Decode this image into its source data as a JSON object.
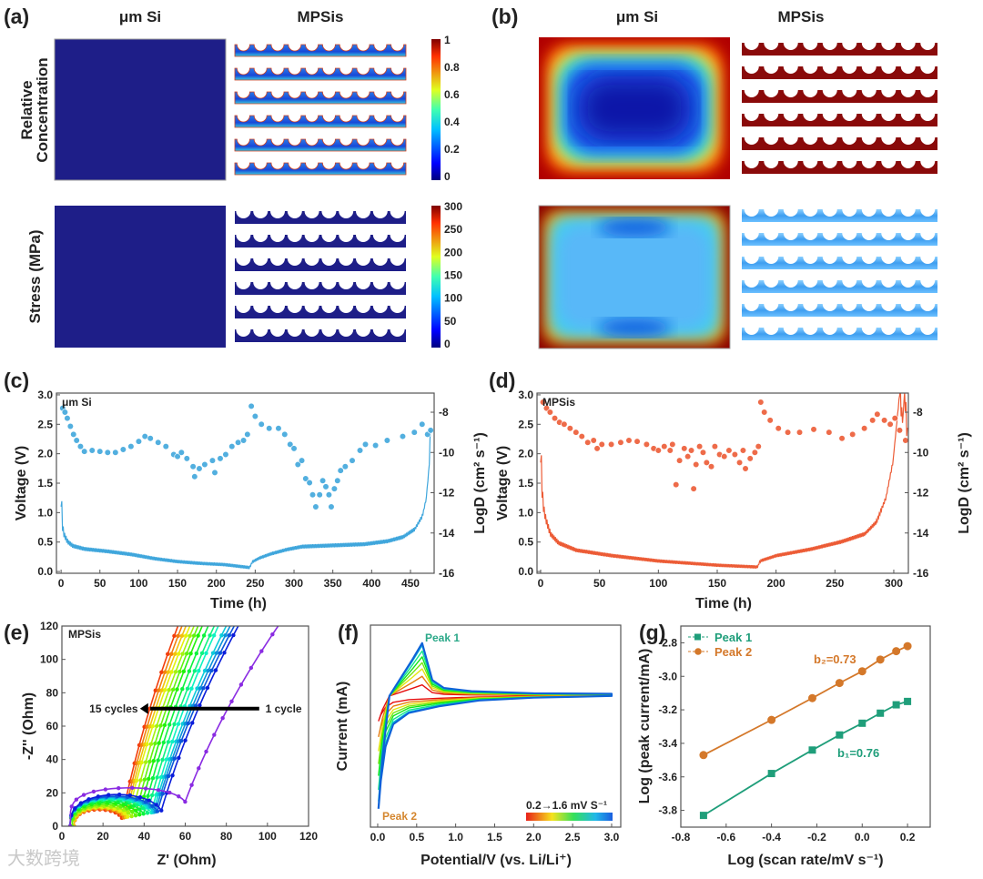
{
  "panels": {
    "a": "(a)",
    "b": "(b)",
    "c": "(c)",
    "d": "(d)",
    "e": "(e)",
    "f": "(f)",
    "g": "(g)"
  },
  "simulation": {
    "col_um": "μm Si",
    "col_mp": "MPSis",
    "row_conc_line1": "Relative",
    "row_conc_line2": "Concentration",
    "row_stress": "Stress (MPa)",
    "cbar_conc_ticks": [
      "1",
      "0.8",
      "0.6",
      "0.4",
      "0.2",
      "0"
    ],
    "cbar_stress_ticks": [
      "300",
      "250",
      "200",
      "150",
      "100",
      "50",
      "0"
    ],
    "colors": {
      "navy": "#1e1e88",
      "dark_red": "#8a0a0a",
      "light_blue": "#4aa8f0"
    }
  },
  "watermark": "大数跨境",
  "chart_data": [
    {
      "id": "c",
      "type": "scatter+line",
      "label": "μm Si",
      "xlabel": "Time (h)",
      "ylabel": "Voltage (V)",
      "y2label": "LogD (cm² s⁻¹)",
      "xlim": [
        -6,
        480.5
      ],
      "ylim": [
        -0.03,
        3.03
      ],
      "y2lim": [
        -16,
        -7.05
      ],
      "xticks": [
        0,
        50,
        100,
        150,
        200,
        250,
        300,
        350,
        400,
        450
      ],
      "yticks": [
        "0.0",
        "0.5",
        "1.0",
        "1.5",
        "2.0",
        "2.5",
        "3.0"
      ],
      "y2ticks": [
        -16,
        -14,
        -12,
        -10,
        -8
      ],
      "color": "#3fa6dc",
      "voltage": [
        [
          0,
          1.1
        ],
        [
          1,
          0.75
        ],
        [
          3,
          0.6
        ],
        [
          8,
          0.47
        ],
        [
          15,
          0.4
        ],
        [
          30,
          0.35
        ],
        [
          60,
          0.31
        ],
        [
          90,
          0.26
        ],
        [
          120,
          0.19
        ],
        [
          150,
          0.14
        ],
        [
          180,
          0.11
        ],
        [
          210,
          0.09
        ],
        [
          243,
          0.04
        ],
        [
          245,
          0.13
        ],
        [
          255,
          0.2
        ],
        [
          270,
          0.27
        ],
        [
          290,
          0.34
        ],
        [
          310,
          0.39
        ],
        [
          350,
          0.41
        ],
        [
          390,
          0.43
        ],
        [
          420,
          0.48
        ],
        [
          440,
          0.55
        ],
        [
          455,
          0.68
        ],
        [
          465,
          0.9
        ],
        [
          470,
          1.2
        ],
        [
          474,
          1.8
        ],
        [
          477,
          3.0
        ]
      ],
      "logD": [
        [
          2,
          -7.8
        ],
        [
          5,
          -8.0
        ],
        [
          8,
          -8.3
        ],
        [
          12,
          -8.7
        ],
        [
          16,
          -9.1
        ],
        [
          20,
          -9.4
        ],
        [
          25,
          -9.7
        ],
        [
          30,
          -9.95
        ],
        [
          40,
          -9.9
        ],
        [
          50,
          -9.95
        ],
        [
          60,
          -10.0
        ],
        [
          70,
          -10.0
        ],
        [
          80,
          -9.85
        ],
        [
          90,
          -9.7
        ],
        [
          100,
          -9.45
        ],
        [
          108,
          -9.2
        ],
        [
          115,
          -9.3
        ],
        [
          125,
          -9.5
        ],
        [
          135,
          -9.7
        ],
        [
          145,
          -10.1
        ],
        [
          150,
          -10.2
        ],
        [
          155,
          -10.0
        ],
        [
          162,
          -10.3
        ],
        [
          170,
          -10.7
        ],
        [
          172,
          -11.2
        ],
        [
          178,
          -10.8
        ],
        [
          185,
          -10.6
        ],
        [
          195,
          -10.4
        ],
        [
          198,
          -11.0
        ],
        [
          205,
          -10.3
        ],
        [
          212,
          -10.1
        ],
        [
          220,
          -9.7
        ],
        [
          228,
          -9.5
        ],
        [
          235,
          -9.4
        ],
        [
          240,
          -9.1
        ],
        [
          245,
          -7.7
        ],
        [
          250,
          -8.2
        ],
        [
          258,
          -8.6
        ],
        [
          268,
          -8.8
        ],
        [
          280,
          -8.8
        ],
        [
          288,
          -9.1
        ],
        [
          295,
          -9.6
        ],
        [
          300,
          -9.8
        ],
        [
          305,
          -10.6
        ],
        [
          310,
          -10.4
        ],
        [
          315,
          -11.3
        ],
        [
          320,
          -11.5
        ],
        [
          324,
          -12.1
        ],
        [
          328,
          -12.7
        ],
        [
          333,
          -12.1
        ],
        [
          337,
          -11.4
        ],
        [
          341,
          -11.7
        ],
        [
          345,
          -12.1
        ],
        [
          348,
          -12.7
        ],
        [
          352,
          -11.8
        ],
        [
          356,
          -11.4
        ],
        [
          360,
          -10.9
        ],
        [
          366,
          -10.7
        ],
        [
          375,
          -10.4
        ],
        [
          385,
          -9.9
        ],
        [
          392,
          -9.6
        ],
        [
          405,
          -9.65
        ],
        [
          420,
          -9.4
        ],
        [
          440,
          -9.2
        ],
        [
          455,
          -9.0
        ],
        [
          465,
          -8.6
        ],
        [
          472,
          -9.1
        ],
        [
          476,
          -8.9
        ]
      ]
    },
    {
      "id": "d",
      "type": "scatter+line",
      "label": "MPSis",
      "xlabel": "Time (h)",
      "ylabel": "Voltage (V)",
      "y2label": "LogD (cm² s⁻¹)",
      "xlim": [
        -3.1,
        312.4
      ],
      "ylim": [
        -0.03,
        3.03
      ],
      "y2lim": [
        -16,
        -7.05
      ],
      "xticks": [
        0,
        50,
        100,
        150,
        200,
        250,
        300
      ],
      "yticks": [
        "0.0",
        "0.5",
        "1.0",
        "1.5",
        "2.0",
        "2.5",
        "3.0"
      ],
      "y2ticks": [
        -16,
        -14,
        -12,
        -10,
        -8
      ],
      "color": "#ec5b35",
      "voltage": [
        [
          0,
          1.85
        ],
        [
          1.5,
          1.1
        ],
        [
          4,
          0.85
        ],
        [
          8,
          0.6
        ],
        [
          15,
          0.45
        ],
        [
          30,
          0.33
        ],
        [
          60,
          0.24
        ],
        [
          100,
          0.15
        ],
        [
          150,
          0.08
        ],
        [
          184,
          0.05
        ],
        [
          186,
          0.15
        ],
        [
          200,
          0.24
        ],
        [
          230,
          0.35
        ],
        [
          255,
          0.47
        ],
        [
          275,
          0.6
        ],
        [
          285,
          0.8
        ],
        [
          293,
          1.2
        ],
        [
          299,
          1.8
        ],
        [
          303,
          2.6
        ],
        [
          305,
          3.0
        ],
        [
          307,
          2.4
        ],
        [
          309,
          3.0
        ],
        [
          311,
          2.3
        ]
      ],
      "logD": [
        [
          2,
          -7.5
        ],
        [
          5,
          -7.8
        ],
        [
          8,
          -8.0
        ],
        [
          12,
          -8.3
        ],
        [
          16,
          -8.5
        ],
        [
          20,
          -8.6
        ],
        [
          25,
          -8.8
        ],
        [
          30,
          -9.0
        ],
        [
          35,
          -9.2
        ],
        [
          40,
          -9.5
        ],
        [
          45,
          -9.4
        ],
        [
          48,
          -9.8
        ],
        [
          52,
          -9.6
        ],
        [
          60,
          -9.6
        ],
        [
          68,
          -9.5
        ],
        [
          75,
          -9.4
        ],
        [
          82,
          -9.45
        ],
        [
          90,
          -9.6
        ],
        [
          96,
          -9.8
        ],
        [
          100,
          -9.9
        ],
        [
          105,
          -9.7
        ],
        [
          110,
          -9.9
        ],
        [
          112,
          -9.6
        ],
        [
          115,
          -11.6
        ],
        [
          118,
          -10.4
        ],
        [
          122,
          -9.8
        ],
        [
          125,
          -10.2
        ],
        [
          128,
          -9.9
        ],
        [
          130,
          -11.8
        ],
        [
          132,
          -10.6
        ],
        [
          135,
          -9.7
        ],
        [
          138,
          -10.0
        ],
        [
          141,
          -10.5
        ],
        [
          145,
          -10.7
        ],
        [
          148,
          -9.7
        ],
        [
          152,
          -10.1
        ],
        [
          156,
          -10.2
        ],
        [
          160,
          -9.9
        ],
        [
          165,
          -10.1
        ],
        [
          169,
          -10.5
        ],
        [
          172,
          -9.9
        ],
        [
          174,
          -10.8
        ],
        [
          178,
          -10.3
        ],
        [
          182,
          -10.0
        ],
        [
          185,
          -9.7
        ],
        [
          187,
          -7.5
        ],
        [
          190,
          -8.0
        ],
        [
          195,
          -8.4
        ],
        [
          202,
          -8.8
        ],
        [
          210,
          -9.0
        ],
        [
          220,
          -9.0
        ],
        [
          232,
          -8.85
        ],
        [
          245,
          -9.0
        ],
        [
          256,
          -9.3
        ],
        [
          265,
          -9.1
        ],
        [
          275,
          -8.8
        ],
        [
          282,
          -8.4
        ],
        [
          286,
          -8.1
        ],
        [
          292,
          -8.4
        ],
        [
          297,
          -8.6
        ],
        [
          301,
          -8.3
        ],
        [
          305,
          -8.9
        ],
        [
          310,
          -9.4
        ]
      ]
    },
    {
      "id": "e",
      "type": "line",
      "label": "MPSis",
      "xlabel": "Z' (Ohm)",
      "ylabel": "-Z'' (Ohm)",
      "xlim": [
        0,
        120
      ],
      "ylim": [
        0,
        120
      ],
      "xticks": [
        0,
        20,
        40,
        60,
        80,
        100,
        120
      ],
      "yticks": [
        0,
        20,
        40,
        60,
        80,
        100,
        120
      ],
      "annotation_start": "1 cycle",
      "annotation_end": "15 cycles",
      "series": [
        {
          "cycle": 1,
          "r0": 4,
          "r1": 62,
          "arc_peak": 23,
          "z_at_120": 108
        },
        {
          "cycle": 2,
          "r0": 4,
          "r1": 50,
          "arc_peak": 19,
          "z_at_120": 88
        },
        {
          "cycle": 3,
          "r0": 4,
          "r1": 48,
          "arc_peak": 18,
          "z_at_120": 86
        },
        {
          "cycle": 4,
          "r0": 4,
          "r1": 47,
          "arc_peak": 17.5,
          "z_at_120": 84
        },
        {
          "cycle": 5,
          "r0": 4,
          "r1": 46,
          "arc_peak": 17,
          "z_at_120": 82
        },
        {
          "cycle": 6,
          "r0": 4,
          "r1": 45,
          "arc_peak": 16.5,
          "z_at_120": 78
        },
        {
          "cycle": 7,
          "r0": 4,
          "r1": 43,
          "arc_peak": 16,
          "z_at_120": 76
        },
        {
          "cycle": 8,
          "r0": 4,
          "r1": 41,
          "arc_peak": 15,
          "z_at_120": 73
        },
        {
          "cycle": 9,
          "r0": 4,
          "r1": 39,
          "arc_peak": 14,
          "z_at_120": 70
        },
        {
          "cycle": 10,
          "r0": 5,
          "r1": 37,
          "arc_peak": 13,
          "z_at_120": 68
        },
        {
          "cycle": 11,
          "r0": 5,
          "r1": 35,
          "arc_peak": 12,
          "z_at_120": 66
        },
        {
          "cycle": 12,
          "r0": 5,
          "r1": 33,
          "arc_peak": 11.5,
          "z_at_120": 64
        },
        {
          "cycle": 13,
          "r0": 6,
          "r1": 32,
          "arc_peak": 11,
          "z_at_120": 62
        },
        {
          "cycle": 14,
          "r0": 6,
          "r1": 31,
          "arc_peak": 10.5,
          "z_at_120": 60
        },
        {
          "cycle": 15,
          "r0": 6,
          "r1": 30,
          "arc_peak": 10,
          "z_at_120": 58
        }
      ]
    },
    {
      "id": "f",
      "type": "line",
      "xlabel": "Potential/V (vs. Li/Li⁺)",
      "ylabel": "Current (mA)",
      "xlim": [
        -0.093,
        3.117
      ],
      "ylim": [
        -0.00176,
        0.00095
      ],
      "xticks": [
        "0.0",
        "0.5",
        "1.0",
        "1.5",
        "2.0",
        "2.5",
        "3.0"
      ],
      "peak1_label": "Peak 1",
      "peak2_label": "Peak 2",
      "legend": "0.2→1.6 mV S⁻¹",
      "scan_rates": [
        0.2,
        0.4,
        0.6,
        0.8,
        1.0,
        1.2,
        1.4,
        1.6
      ]
    },
    {
      "id": "g",
      "type": "scatter+line",
      "xlabel": "Log (scan rate/mV s⁻¹)",
      "ylabel": "Log (peak current/mA)",
      "xlim": [
        -0.8,
        0.3
      ],
      "ylim": [
        -3.9,
        -2.7
      ],
      "xticks": [
        "-0.8",
        "-0.6",
        "-0.4",
        "-0.2",
        "0.0",
        "0.2"
      ],
      "yticks": [
        "-3.8",
        "-3.6",
        "-3.4",
        "-3.2",
        "-3.0",
        "-2.8"
      ],
      "legend_position": "top-left",
      "x": [
        -0.7,
        -0.4,
        -0.22,
        -0.1,
        0.0,
        0.08,
        0.15,
        0.2
      ],
      "series": [
        {
          "name": "Peak 1",
          "color": "#1f9e7a",
          "marker": "square",
          "values": [
            -3.83,
            -3.58,
            -3.44,
            -3.35,
            -3.28,
            -3.22,
            -3.17,
            -3.15
          ],
          "slope_label": "b₁=0.76"
        },
        {
          "name": "Peak 2",
          "color": "#d4782a",
          "marker": "circle",
          "values": [
            -3.47,
            -3.26,
            -3.13,
            -3.04,
            -2.97,
            -2.9,
            -2.85,
            -2.82
          ],
          "slope_label": "b₂=0.73"
        }
      ]
    }
  ]
}
